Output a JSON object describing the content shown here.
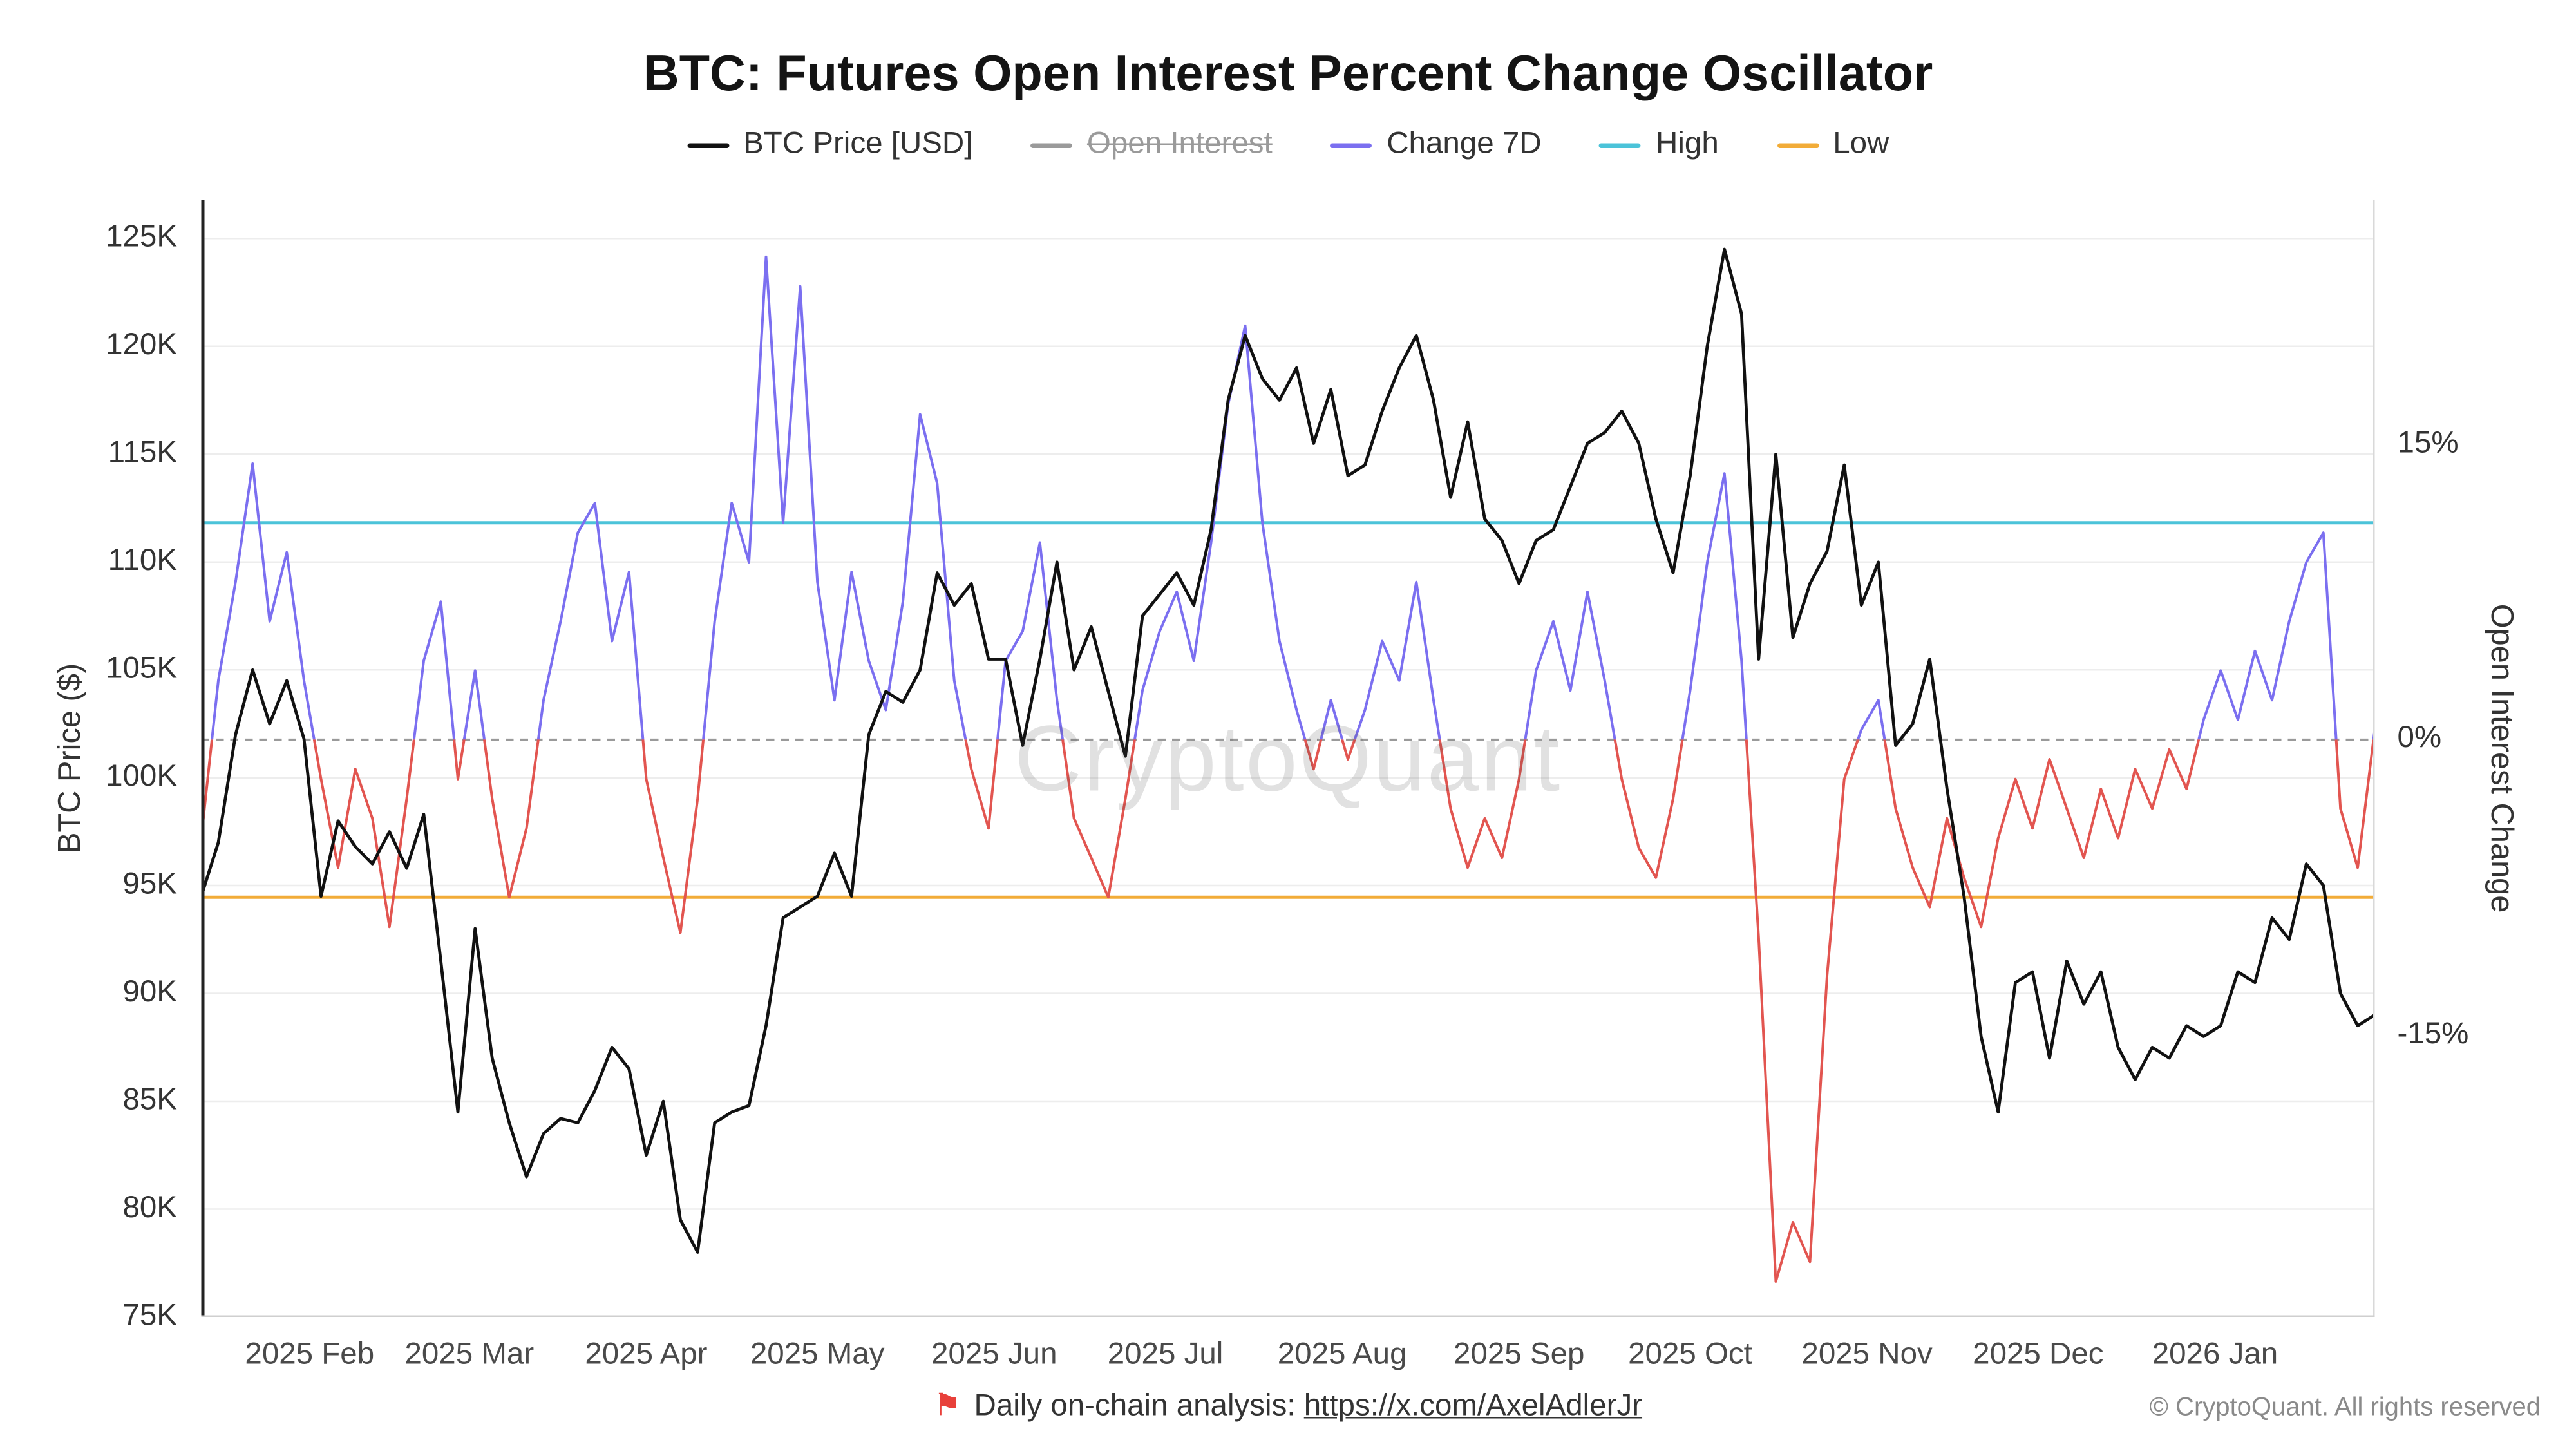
{
  "watermark": "CryptoQuant",
  "legend": {
    "items": [
      {
        "label": "BTC Price [USD]",
        "color": "#111111",
        "disabled": false
      },
      {
        "label": "Open Interest",
        "color": "#9a9a9a",
        "disabled": true
      },
      {
        "label": "Change 7D",
        "color": "#7b6ff0",
        "disabled": false
      },
      {
        "label": "High",
        "color": "#4bc3d9",
        "disabled": false
      },
      {
        "label": "Low",
        "color": "#f2ac38",
        "disabled": false
      }
    ]
  },
  "footer": {
    "flag_icon": "⚑",
    "text": "Daily on-chain analysis: ",
    "link": "https://x.com/AxelAdlerJr",
    "copyright": "© CryptoQuant. All rights reserved"
  },
  "chart_data": {
    "type": "line",
    "title": "BTC: Futures Open Interest Percent Change Oscillator",
    "grid": "horizontal",
    "x_domain_days": [
      0,
      381
    ],
    "x_ticks": [
      {
        "d": 19,
        "label": "2025 Feb"
      },
      {
        "d": 47,
        "label": "2025 Mar"
      },
      {
        "d": 78,
        "label": "2025 Apr"
      },
      {
        "d": 108,
        "label": "2025 May"
      },
      {
        "d": 139,
        "label": "2025 Jun"
      },
      {
        "d": 169,
        "label": "2025 Jul"
      },
      {
        "d": 200,
        "label": "2025 Aug"
      },
      {
        "d": 231,
        "label": "2025 Sep"
      },
      {
        "d": 261,
        "label": "2025 Oct"
      },
      {
        "d": 292,
        "label": "2025 Nov"
      },
      {
        "d": 322,
        "label": "2025 Dec"
      },
      {
        "d": 353,
        "label": "2026 Jan"
      }
    ],
    "left_axis": {
      "label": "BTC Price ($)",
      "min": 75,
      "max": 126.8,
      "unit": "K USD",
      "ticks": [
        {
          "v": 125,
          "label": "125K"
        },
        {
          "v": 120,
          "label": "120K"
        },
        {
          "v": 115,
          "label": "115K"
        },
        {
          "v": 110,
          "label": "110K"
        },
        {
          "v": 105,
          "label": "105K"
        },
        {
          "v": 100,
          "label": "100K"
        },
        {
          "v": 95,
          "label": "95K"
        },
        {
          "v": 90,
          "label": "90K"
        },
        {
          "v": 85,
          "label": "85K"
        },
        {
          "v": 80,
          "label": "80K"
        },
        {
          "v": 75,
          "label": "75K"
        }
      ]
    },
    "right_axis": {
      "label": "Open Interest Change",
      "min": -29.3,
      "max": 27.4,
      "unit": "%",
      "zero_line_value": 0,
      "ticks": [
        {
          "v": 15,
          "label": "15%"
        },
        {
          "v": 0,
          "label": "0%"
        },
        {
          "v": -15,
          "label": "-15%"
        }
      ]
    },
    "series": [
      {
        "name": "BTC Price [USD]",
        "type": "line",
        "axis": "left",
        "color": "#111111",
        "step_days": 3,
        "values_usd_k": [
          94.5,
          97.0,
          102.0,
          105.0,
          102.5,
          104.5,
          101.8,
          94.5,
          98.0,
          96.8,
          96.0,
          97.5,
          95.8,
          98.3,
          91.5,
          84.5,
          93.0,
          87.0,
          84.0,
          81.5,
          83.5,
          84.2,
          84.0,
          85.5,
          87.5,
          86.5,
          82.5,
          85.0,
          79.5,
          78.0,
          84.0,
          84.5,
          84.8,
          88.5,
          93.5,
          94.0,
          94.5,
          96.5,
          94.5,
          102.0,
          104.0,
          103.5,
          105.0,
          109.5,
          108.0,
          109.0,
          105.5,
          105.5,
          101.5,
          105.5,
          110.0,
          105.0,
          107.0,
          104.0,
          101.0,
          107.5,
          108.5,
          109.5,
          108.0,
          111.5,
          117.5,
          120.5,
          118.5,
          117.5,
          119.0,
          115.5,
          118.0,
          114.0,
          114.5,
          117.0,
          119.0,
          120.5,
          117.5,
          113.0,
          116.5,
          112.0,
          111.0,
          109.0,
          111.0,
          111.5,
          113.5,
          115.5,
          116.0,
          117.0,
          115.5,
          112.0,
          109.5,
          114.0,
          120.0,
          124.5,
          121.5,
          105.5,
          115.0,
          106.5,
          109.0,
          110.5,
          114.5,
          108.0,
          110.0,
          101.5,
          102.5,
          105.5,
          99.5,
          94.5,
          88.0,
          84.5,
          90.5,
          91.0,
          87.0,
          91.5,
          89.5,
          91.0,
          87.5,
          86.0,
          87.5,
          87.0,
          88.5,
          88.0,
          88.5,
          91.0,
          90.5,
          93.5,
          92.5,
          96.0,
          95.0,
          90.0,
          88.5,
          89.0
        ]
      },
      {
        "name": "Open Interest",
        "type": "line",
        "axis": "right",
        "color": "#9a9a9a",
        "hidden": true,
        "values": []
      },
      {
        "name": "Change 7D",
        "type": "line",
        "axis": "right",
        "color_positive": "#7b6ff0",
        "color_negative": "#e25550",
        "step_days": 3,
        "values_pct": [
          -5,
          3,
          8,
          14,
          6,
          9.5,
          3,
          -2,
          -6.5,
          -1.5,
          -4,
          -9.5,
          -3,
          4,
          7,
          -2,
          3.5,
          -3,
          -8,
          -4.5,
          2,
          6,
          10.5,
          12,
          5,
          8.5,
          -2,
          -6,
          -9.8,
          -3,
          6,
          12,
          9,
          24.5,
          11,
          23,
          8,
          2,
          8.5,
          4,
          1.5,
          7,
          16.5,
          13,
          3,
          -1.5,
          -4.5,
          4,
          5.5,
          10,
          2,
          -4,
          -6,
          -8,
          -3,
          2.5,
          5.5,
          7.5,
          4,
          10,
          17,
          21,
          11,
          5,
          1.5,
          -1.5,
          2,
          -1,
          1.5,
          5,
          3,
          8,
          2,
          -3.5,
          -6.5,
          -4,
          -6,
          -2,
          3.5,
          6,
          2.5,
          7.5,
          3,
          -2,
          -5.5,
          -7,
          -3,
          2.5,
          9,
          13.5,
          4,
          -10,
          -27.5,
          -24.5,
          -26.5,
          -12,
          -2,
          0.5,
          2,
          -3.5,
          -6.5,
          -8.5,
          -4,
          -7,
          -9.5,
          -5,
          -2,
          -4.5,
          -1,
          -3.5,
          -6,
          -2.5,
          -5,
          -1.5,
          -3.5,
          -0.5,
          -2.5,
          1,
          3.5,
          1,
          4.5,
          2,
          6,
          9,
          10.5,
          -3.5,
          -6.5,
          0.5
        ]
      },
      {
        "name": "High",
        "type": "hline",
        "axis": "right",
        "color": "#4bc3d9",
        "value_pct": 11
      },
      {
        "name": "Low",
        "type": "hline",
        "axis": "right",
        "color": "#f2ac38",
        "value_pct": -8
      }
    ]
  }
}
